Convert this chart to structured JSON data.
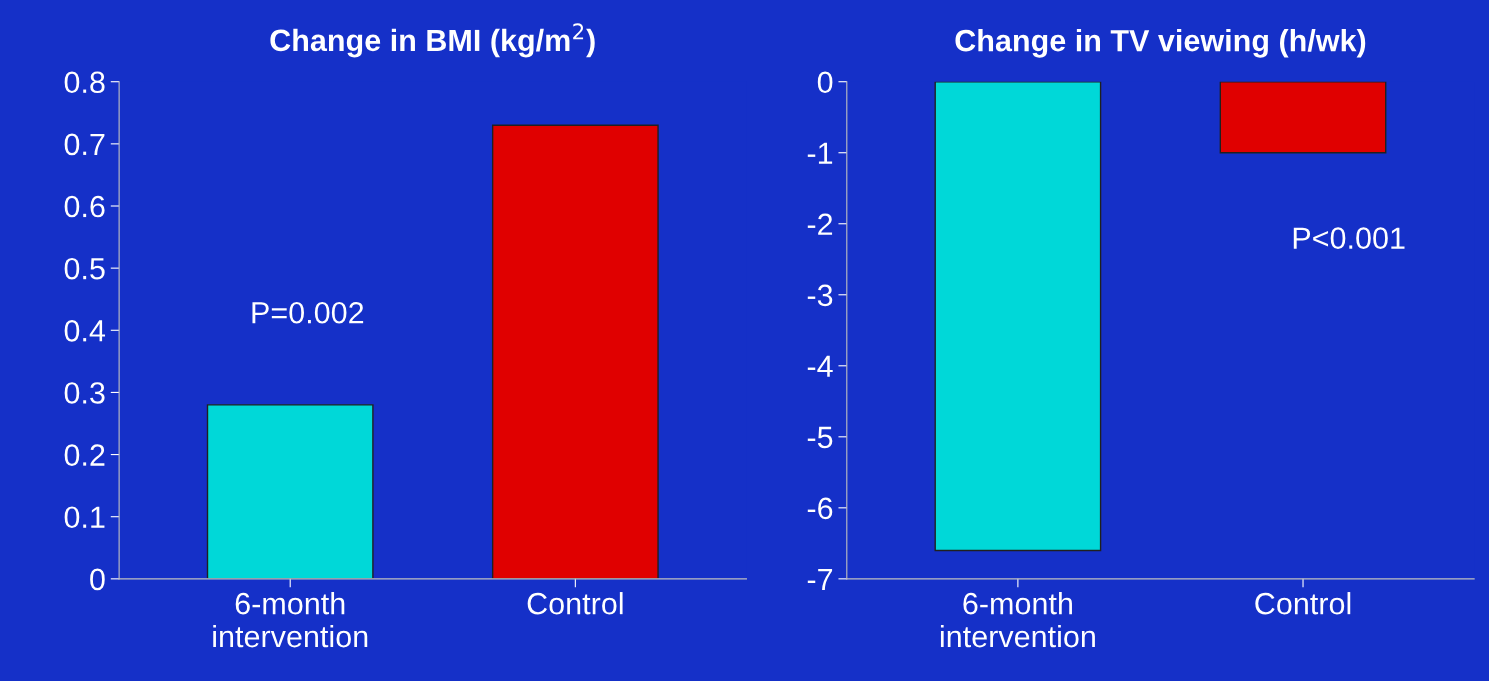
{
  "chart_data": [
    {
      "type": "bar",
      "title": "Change in BMI (kg/m$^{2}$)",
      "categories": [
        "6-month\nintervention",
        "Control"
      ],
      "values": [
        0.28,
        0.73
      ],
      "colors": [
        "#00d8d8",
        "#e00000"
      ],
      "ylim": [
        0,
        0.8
      ],
      "yticks": [
        0,
        0.1,
        0.2,
        0.3,
        0.4,
        0.5,
        0.6,
        0.7,
        0.8
      ],
      "annotations": [
        "P=0.002"
      ]
    },
    {
      "type": "bar",
      "title": "Change in TV viewing (h/wk)",
      "categories": [
        "6-month\nintervention",
        "Control"
      ],
      "values": [
        -6.6,
        -1.0
      ],
      "colors": [
        "#00d8d8",
        "#e00000"
      ],
      "ylim": [
        -7,
        0
      ],
      "yticks": [
        {
          "value": -7,
          "label": "-7"
        },
        {
          "value": -6,
          "label": "-6"
        },
        {
          "value": -5,
          "label": "-5"
        },
        {
          "value": -4,
          "label": "-4"
        },
        {
          "value": -3,
          "label": "-3"
        },
        {
          "value": -2,
          "label": "-2"
        },
        {
          "value": -1,
          "label": "-1"
        },
        0
      ],
      "annotations": [
        "P<0.001"
      ]
    }
  ]
}
